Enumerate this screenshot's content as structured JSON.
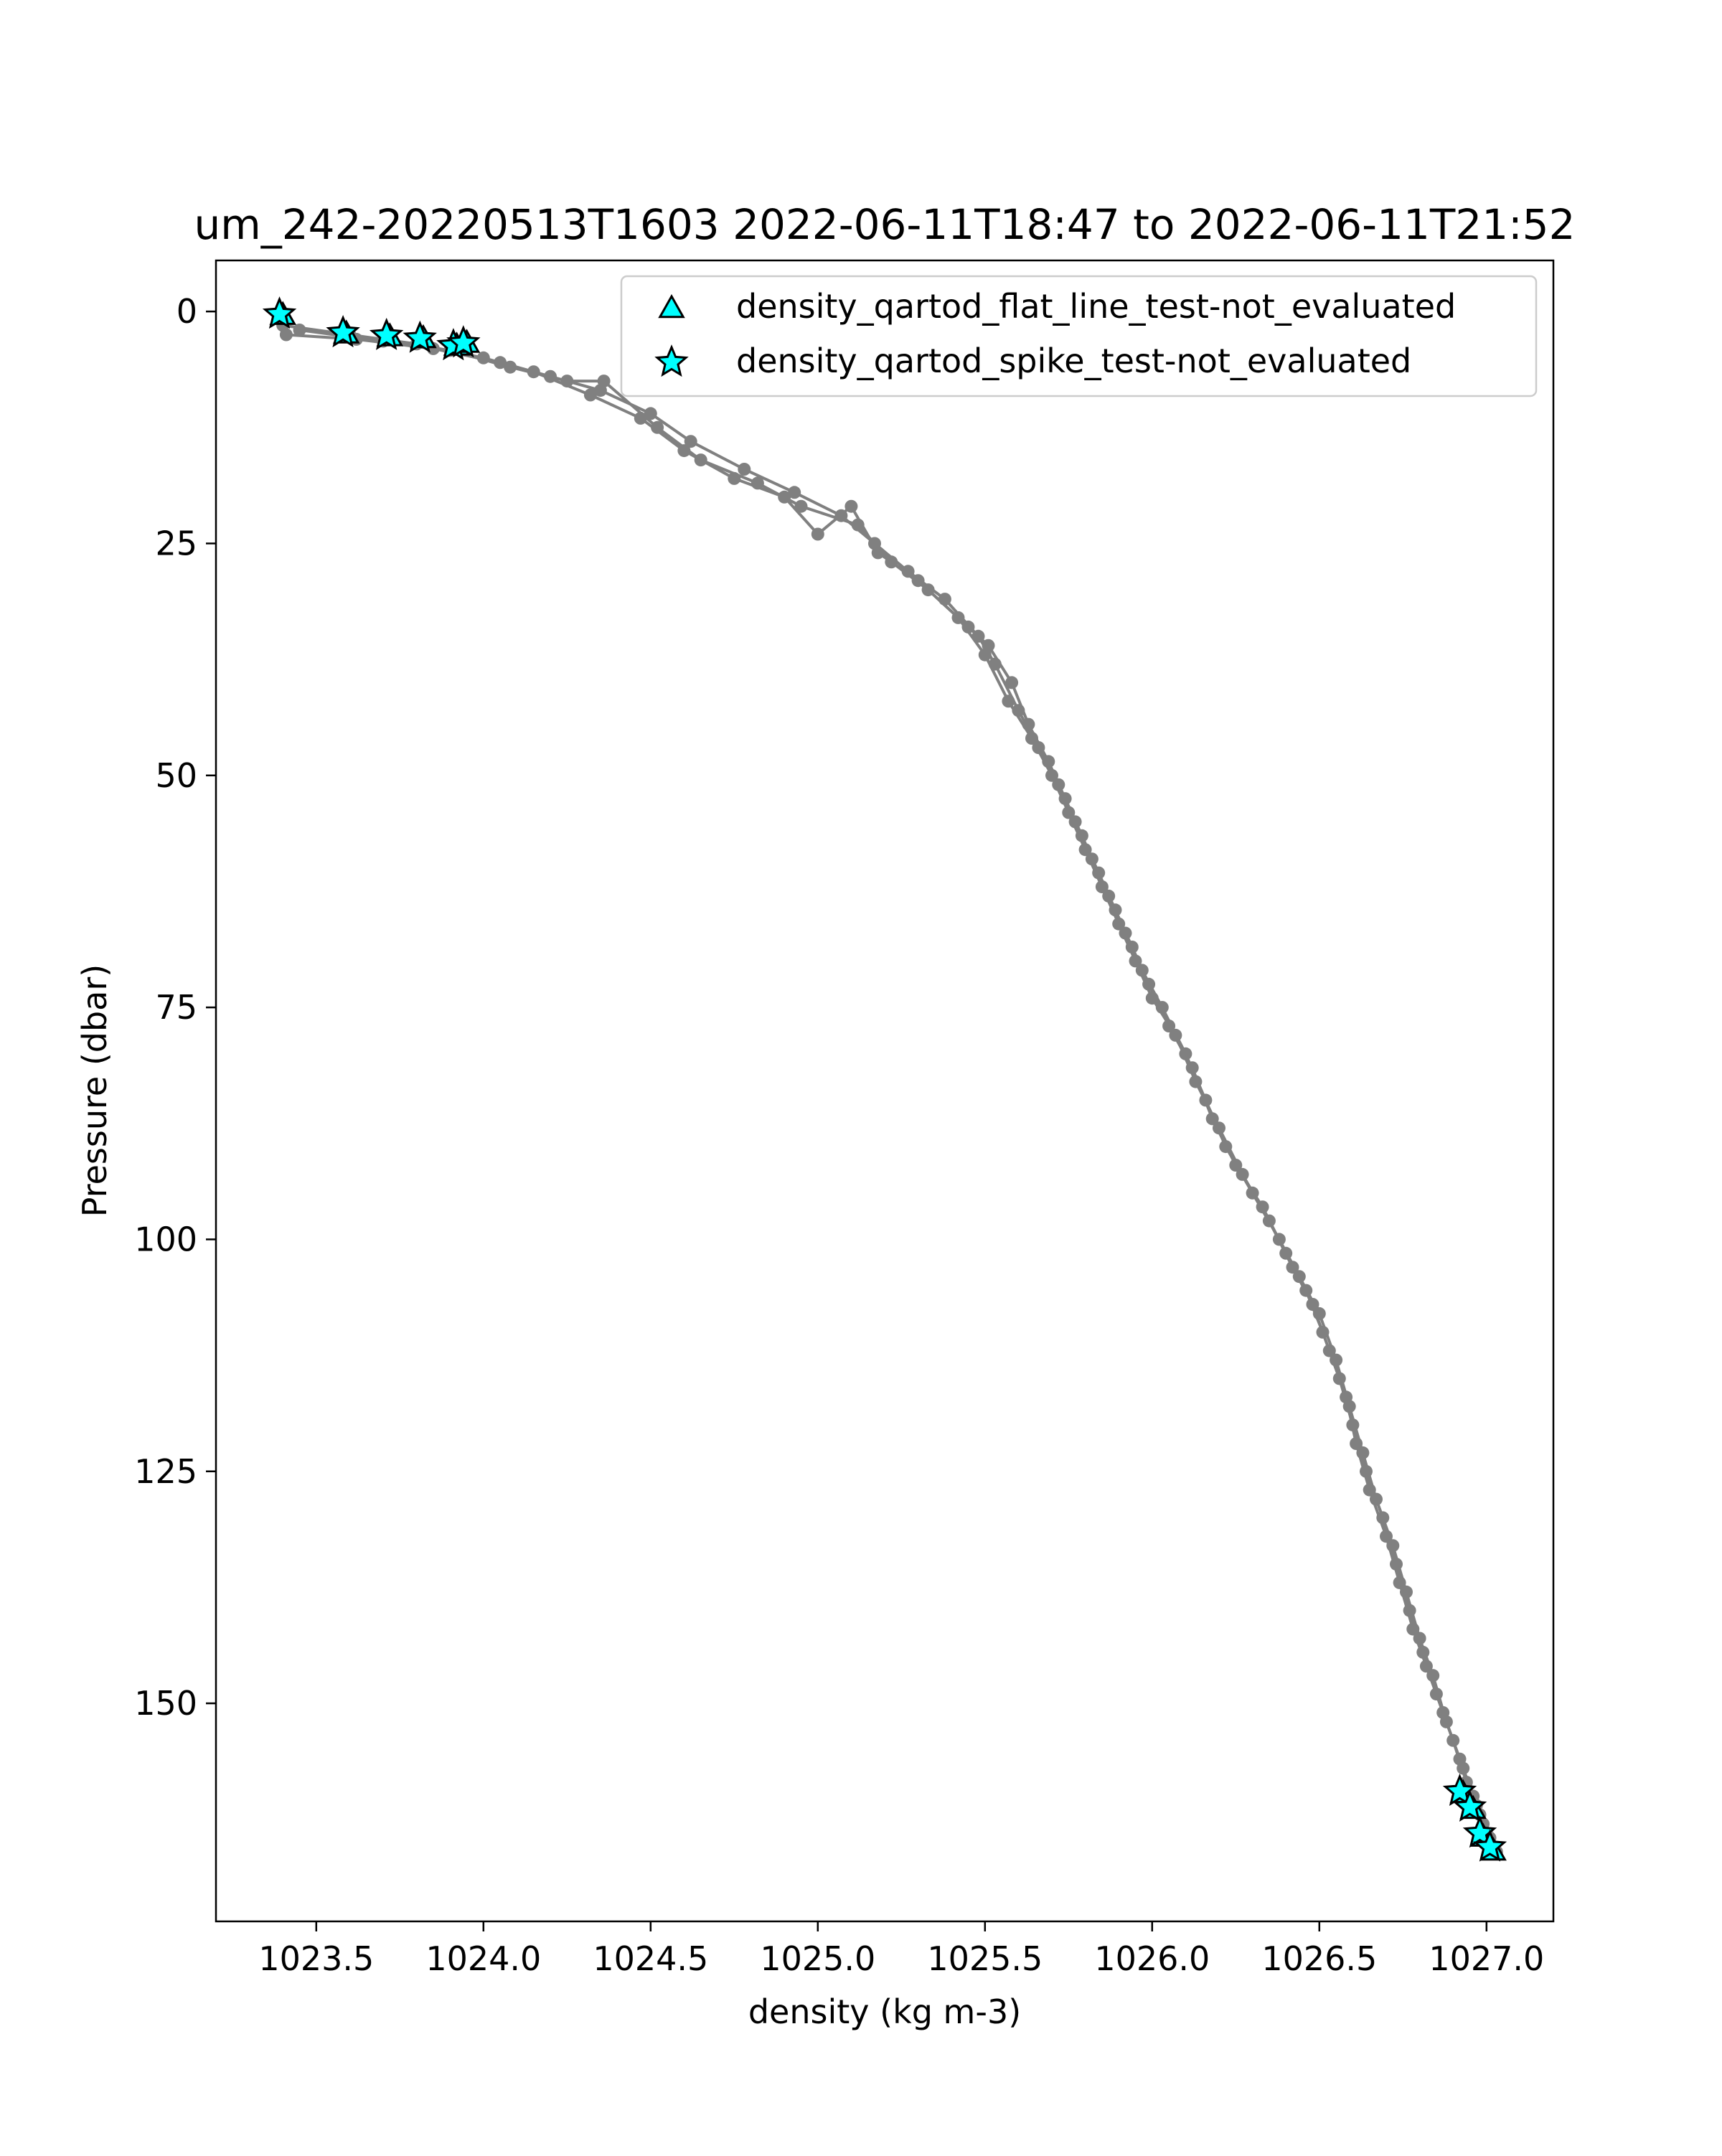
{
  "chart_data": {
    "type": "scatter",
    "title": "um_242-20220513T1603 2022-06-11T18:47 to 2022-06-11T21:52",
    "xlabel": "density (kg m-3)",
    "ylabel": "Pressure (dbar)",
    "xlim": [
      1023.2,
      1027.2
    ],
    "ylim": [
      173.5,
      -5.5
    ],
    "y_inverted": true,
    "xticks": [
      1023.5,
      1024.0,
      1024.5,
      1025.0,
      1025.5,
      1026.0,
      1026.5,
      1027.0
    ],
    "xtick_labels": [
      "1023.5",
      "1024.0",
      "1024.5",
      "1025.0",
      "1025.5",
      "1026.0",
      "1026.5",
      "1027.0"
    ],
    "yticks": [
      0,
      25,
      50,
      75,
      100,
      125,
      150
    ],
    "ytick_labels": [
      "0",
      "25",
      "50",
      "75",
      "100",
      "125",
      "150"
    ],
    "grid": false,
    "legend_position": "top-right",
    "legend": [
      {
        "label": "density_qartod_flat_line_test-not_evaluated",
        "marker": "triangle",
        "color": "#00FFFF"
      },
      {
        "label": "density_qartod_spike_test-not_evaluated",
        "marker": "star",
        "color": "#00FFFF"
      }
    ],
    "series": [
      {
        "role": "profile",
        "color": "#808080",
        "marker": "circle",
        "x": [
          1023.41,
          1023.62,
          1023.85,
          1024.05,
          1024.2,
          1024.35,
          1024.5,
          1024.62,
          1024.78,
          1024.93,
          1025.07,
          1025.17,
          1025.27,
          1025.38,
          1025.48,
          1025.53,
          1025.6,
          1025.66,
          1025.72,
          1025.77,
          1025.82,
          1025.87,
          1025.92,
          1025.97,
          1026.03,
          1026.1,
          1026.16,
          1026.22,
          1026.3,
          1026.38,
          1026.44,
          1026.5,
          1026.55,
          1026.59,
          1026.63,
          1026.67,
          1026.72,
          1026.76,
          1026.8,
          1026.84,
          1026.88,
          1026.93,
          1026.97,
          1027.0,
          1027.02
        ],
        "y": [
          2.5,
          3.0,
          4.0,
          5.5,
          7.0,
          8.5,
          11.0,
          14.0,
          17.0,
          19.5,
          22.0,
          25.0,
          28.0,
          31.0,
          35.0,
          38.0,
          43.0,
          47.0,
          51.0,
          55.0,
          59.0,
          63.0,
          67.0,
          71.0,
          75.0,
          80.0,
          85.0,
          90.0,
          95.0,
          100.0,
          104.0,
          108.0,
          113.0,
          118.0,
          123.0,
          128.0,
          133.0,
          138.0,
          143.0,
          147.0,
          152.0,
          157.0,
          161.0,
          164.0,
          165.5
        ]
      },
      {
        "role": "profile",
        "color": "#808080",
        "marker": "circle",
        "x": [
          1023.4,
          1023.6,
          1023.8,
          1024.0,
          1024.15,
          1024.32,
          1024.47,
          1024.6,
          1024.75,
          1024.9,
          1025.0,
          1025.1,
          1025.18,
          1025.3,
          1025.42,
          1025.5,
          1025.57,
          1025.64,
          1025.7,
          1025.75,
          1025.8,
          1025.85,
          1025.9,
          1025.95,
          1026.0,
          1026.07,
          1026.13,
          1026.2,
          1026.27,
          1026.35,
          1026.42,
          1026.48,
          1026.53,
          1026.58,
          1026.61,
          1026.65,
          1026.7,
          1026.74,
          1026.78,
          1026.82,
          1026.87,
          1026.92,
          1026.96,
          1026.99,
          1027.01
        ],
        "y": [
          1.5,
          2.5,
          3.5,
          5.0,
          6.5,
          9.0,
          11.5,
          15.0,
          18.0,
          20.0,
          24.0,
          21.0,
          26.0,
          29.0,
          33.0,
          37.0,
          42.0,
          46.0,
          50.0,
          54.0,
          58.0,
          62.0,
          66.0,
          70.0,
          74.0,
          78.0,
          83.0,
          88.0,
          93.0,
          98.0,
          103.0,
          107.0,
          112.0,
          117.0,
          122.0,
          127.0,
          132.0,
          137.0,
          142.0,
          146.0,
          151.0,
          156.0,
          160.0,
          163.0,
          165.0
        ]
      },
      {
        "role": "profile",
        "color": "#808080",
        "marker": "circle",
        "x": [
          1023.45,
          1023.7,
          1023.9,
          1024.08,
          1024.25,
          1024.36,
          1024.52,
          1024.65,
          1024.82,
          1024.95,
          1025.12,
          1025.22,
          1025.33,
          1025.45,
          1025.51,
          1025.58,
          1025.63,
          1025.69,
          1025.74,
          1025.79,
          1025.84,
          1025.89,
          1025.94,
          1025.99,
          1026.05,
          1026.12,
          1026.18,
          1026.25,
          1026.33,
          1026.4,
          1026.46,
          1026.51,
          1026.56,
          1026.6,
          1026.64,
          1026.69,
          1026.73,
          1026.77,
          1026.81,
          1026.85,
          1026.9,
          1026.94,
          1026.98,
          1027.01,
          1027.03
        ],
        "y": [
          2.0,
          3.2,
          4.2,
          6.0,
          7.5,
          7.5,
          12.5,
          16.0,
          18.5,
          21.0,
          23.0,
          27.0,
          30.0,
          34.0,
          36.0,
          40.0,
          44.5,
          48.5,
          52.5,
          56.5,
          60.5,
          64.5,
          68.5,
          72.5,
          77.0,
          81.5,
          87.0,
          92.0,
          96.5,
          101.5,
          105.5,
          110.0,
          115.0,
          120.0,
          125.0,
          130.0,
          135.0,
          140.0,
          144.5,
          149.0,
          154.0,
          158.5,
          162.0,
          164.5,
          166.0
        ]
      }
    ],
    "flagged_points": {
      "flat_line_test": {
        "marker": "triangle",
        "x": [
          1023.4,
          1023.59,
          1023.72,
          1023.82,
          1023.92,
          1023.95,
          1026.93,
          1026.96,
          1026.99,
          1027.02
        ],
        "y": [
          0.5,
          2.5,
          2.8,
          3.0,
          3.8,
          3.5,
          159.8,
          161.5,
          164.5,
          166.0
        ]
      },
      "spike_test": {
        "marker": "star",
        "x": [
          1023.39,
          1023.58,
          1023.71,
          1023.81,
          1023.91,
          1023.94,
          1026.92,
          1026.95,
          1026.98,
          1027.01
        ],
        "y": [
          0.3,
          2.3,
          2.6,
          2.9,
          3.7,
          3.4,
          159.5,
          161.2,
          164.0,
          165.5
        ]
      }
    }
  }
}
